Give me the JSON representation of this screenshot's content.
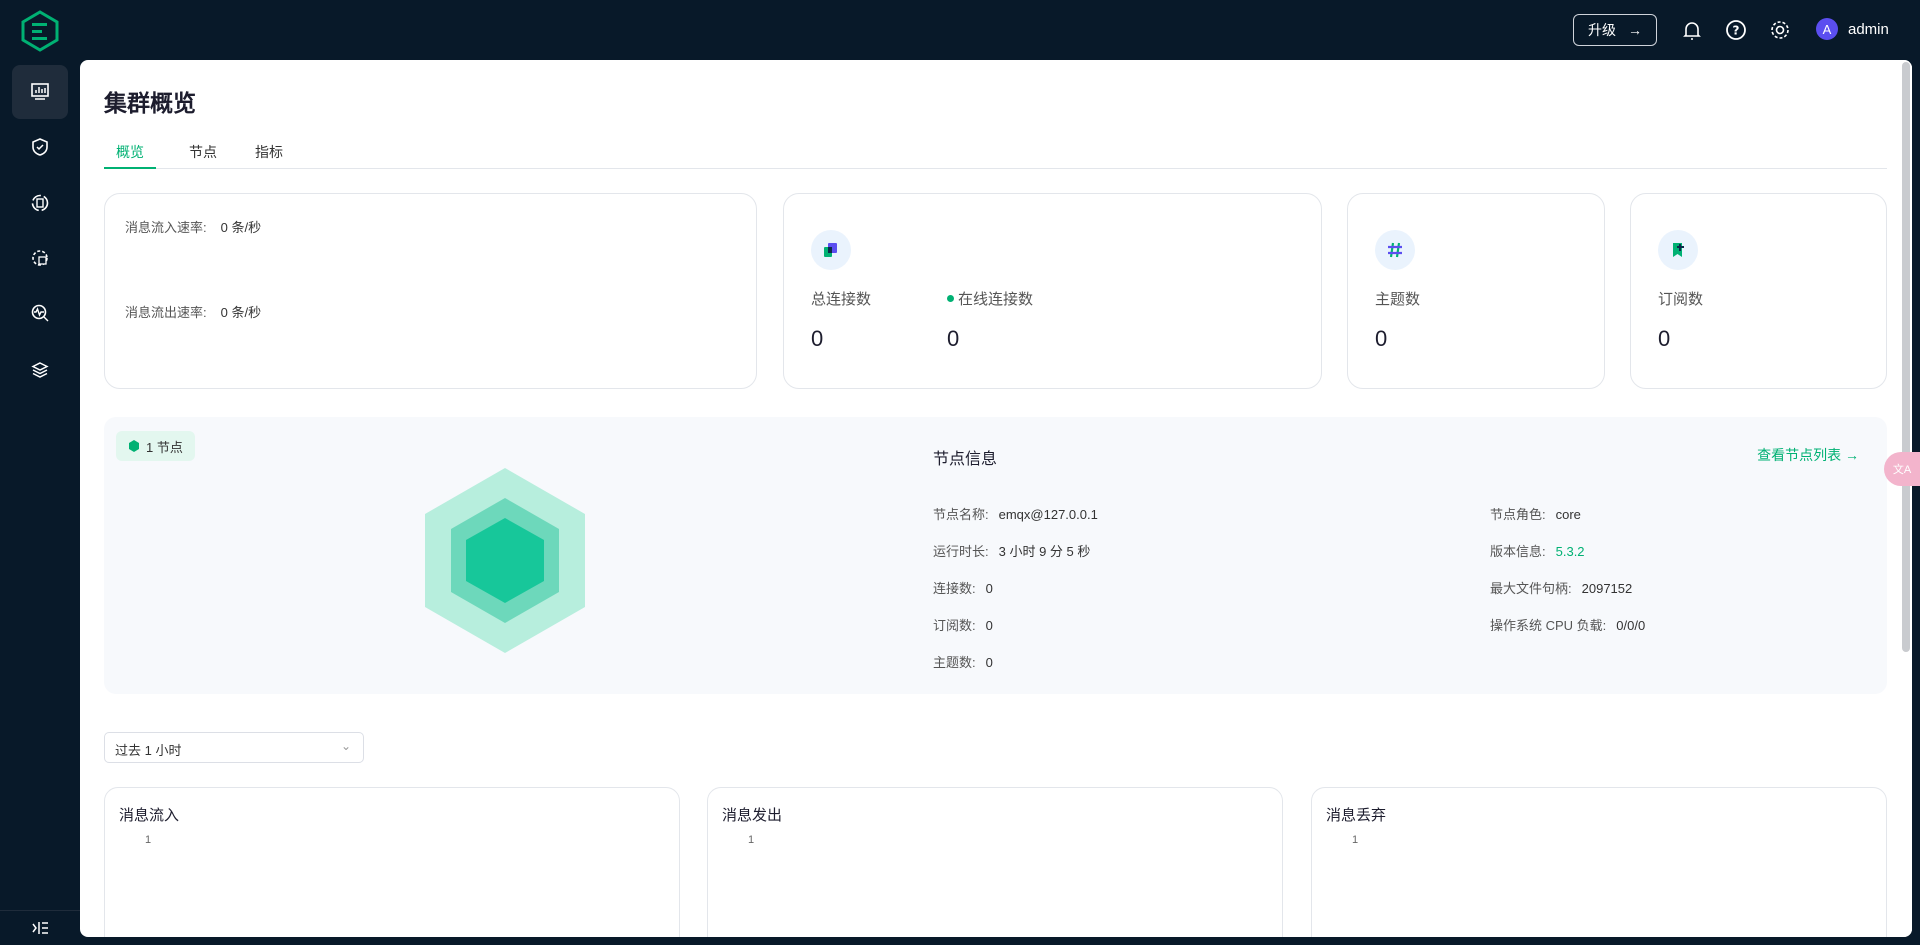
{
  "topbar": {
    "upgrade_label": "升级",
    "upgrade_arrow": "→",
    "user_initial": "A",
    "username": "admin"
  },
  "sidebar": {
    "items": [
      {
        "name": "dashboard",
        "active": true
      },
      {
        "name": "access-control"
      },
      {
        "name": "integration"
      },
      {
        "name": "management"
      },
      {
        "name": "diagnose"
      },
      {
        "name": "cluster"
      }
    ]
  },
  "page": {
    "title": "集群概览",
    "tabs": [
      "概览",
      "节点",
      "指标"
    ],
    "active_tab": "概览"
  },
  "rates": {
    "in_label": "消息流入速率:",
    "in_value": "0 条/秒",
    "out_label": "消息流出速率:",
    "out_value": "0 条/秒"
  },
  "stats": {
    "total_conn_label": "总连接数",
    "total_conn": "0",
    "online_conn_label": "在线连接数",
    "online_conn": "0",
    "topics_label": "主题数",
    "topics": "0",
    "subs_label": "订阅数",
    "subs": "0"
  },
  "node": {
    "badge": "1 节点",
    "title": "节点信息",
    "link": "查看节点列表 →",
    "left": [
      {
        "k": "节点名称:",
        "v": "emqx@127.0.0.1"
      },
      {
        "k": "运行时长:",
        "v": "3 小时 9 分 5 秒"
      },
      {
        "k": "连接数:",
        "v": "0"
      },
      {
        "k": "订阅数:",
        "v": "0"
      },
      {
        "k": "主题数:",
        "v": "0"
      }
    ],
    "right": [
      {
        "k": "节点角色:",
        "v": "core"
      },
      {
        "k": "版本信息:",
        "v": "5.3.2"
      },
      {
        "k": "最大文件句柄:",
        "v": "2097152"
      },
      {
        "k": "操作系统 CPU 负载:",
        "v": "0/0/0"
      }
    ]
  },
  "time_range": {
    "selected": "过去 1 小时"
  },
  "charts": [
    {
      "title": "消息流入",
      "tick": "1"
    },
    {
      "title": "消息发出",
      "tick": "1"
    },
    {
      "title": "消息丢弃",
      "tick": "1"
    }
  ],
  "colors": {
    "accent": "#00b173",
    "sidebar_bg": "#081929",
    "avatar": "#5b4ef0",
    "version": "#00b173"
  }
}
